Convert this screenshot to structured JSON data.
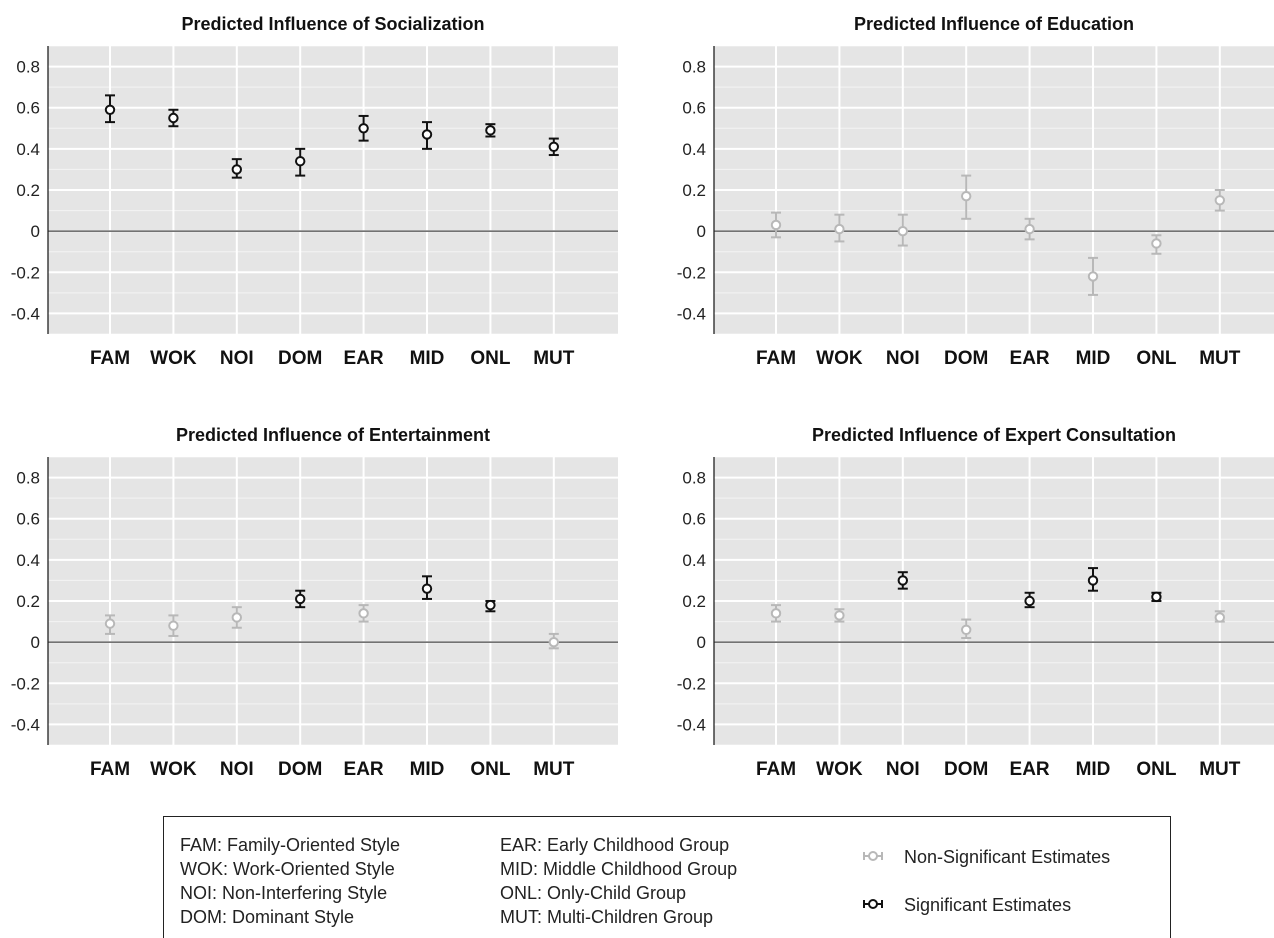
{
  "colors": {
    "panel_bg": "#e5e5e5",
    "grid": "#ffffff",
    "significant": "#111111",
    "non_significant": "#b8b8b8",
    "axis": "#222222"
  },
  "chart_data": [
    {
      "type": "scatter",
      "title": "Predicted Influence of Socialization",
      "categories": [
        "FAM",
        "WOK",
        "NOI",
        "DOM",
        "EAR",
        "MID",
        "ONL",
        "MUT"
      ],
      "yticks": [
        "0.8",
        "0.6",
        "0.4",
        "0.2",
        "0",
        "-0.2",
        "-0.4"
      ],
      "ylim": [
        -0.5,
        0.9
      ],
      "estimates": [
        0.59,
        0.55,
        0.3,
        0.34,
        0.5,
        0.47,
        0.49,
        0.41
      ],
      "lower": [
        0.53,
        0.51,
        0.26,
        0.27,
        0.44,
        0.4,
        0.46,
        0.37
      ],
      "upper": [
        0.66,
        0.59,
        0.35,
        0.4,
        0.56,
        0.53,
        0.52,
        0.45
      ],
      "significant": [
        true,
        true,
        true,
        true,
        true,
        true,
        true,
        true
      ]
    },
    {
      "type": "scatter",
      "title": "Predicted Influence of Education",
      "categories": [
        "FAM",
        "WOK",
        "NOI",
        "DOM",
        "EAR",
        "MID",
        "ONL",
        "MUT"
      ],
      "yticks": [
        "0.8",
        "0.6",
        "0.4",
        "0.2",
        "0",
        "-0.2",
        "-0.4"
      ],
      "ylim": [
        -0.5,
        0.9
      ],
      "estimates": [
        0.03,
        0.01,
        0.0,
        0.17,
        0.01,
        -0.22,
        -0.06,
        0.15
      ],
      "lower": [
        -0.03,
        -0.05,
        -0.07,
        0.06,
        -0.04,
        -0.31,
        -0.11,
        0.1
      ],
      "upper": [
        0.09,
        0.08,
        0.08,
        0.27,
        0.06,
        -0.13,
        -0.02,
        0.2
      ],
      "significant": [
        false,
        false,
        false,
        false,
        false,
        false,
        false,
        false
      ]
    },
    {
      "type": "scatter",
      "title": "Predicted Influence of Entertainment",
      "categories": [
        "FAM",
        "WOK",
        "NOI",
        "DOM",
        "EAR",
        "MID",
        "ONL",
        "MUT"
      ],
      "yticks": [
        "0.8",
        "0.6",
        "0.4",
        "0.2",
        "0",
        "-0.2",
        "-0.4"
      ],
      "ylim": [
        -0.5,
        0.9
      ],
      "estimates": [
        0.09,
        0.08,
        0.12,
        0.21,
        0.14,
        0.26,
        0.18,
        0.0
      ],
      "lower": [
        0.04,
        0.03,
        0.07,
        0.17,
        0.1,
        0.21,
        0.15,
        -0.03
      ],
      "upper": [
        0.13,
        0.13,
        0.17,
        0.25,
        0.18,
        0.32,
        0.2,
        0.04
      ],
      "significant": [
        false,
        false,
        false,
        true,
        false,
        true,
        true,
        false
      ]
    },
    {
      "type": "scatter",
      "title": "Predicted Influence of Expert Consultation",
      "categories": [
        "FAM",
        "WOK",
        "NOI",
        "DOM",
        "EAR",
        "MID",
        "ONL",
        "MUT"
      ],
      "yticks": [
        "0.8",
        "0.6",
        "0.4",
        "0.2",
        "0",
        "-0.2",
        "-0.4"
      ],
      "ylim": [
        -0.5,
        0.9
      ],
      "estimates": [
        0.14,
        0.13,
        0.3,
        0.06,
        0.2,
        0.3,
        0.22,
        0.12
      ],
      "lower": [
        0.1,
        0.1,
        0.26,
        0.02,
        0.17,
        0.25,
        0.2,
        0.1
      ],
      "upper": [
        0.18,
        0.16,
        0.34,
        0.11,
        0.24,
        0.36,
        0.24,
        0.15
      ],
      "significant": [
        false,
        false,
        true,
        false,
        true,
        true,
        true,
        false
      ]
    }
  ],
  "legend": {
    "abbreviations_col1": [
      "FAM: Family-Oriented Style",
      "WOK: Work-Oriented Style",
      "NOI: Non-Interfering Style",
      "DOM: Dominant Style"
    ],
    "abbreviations_col2": [
      "EAR: Early Childhood Group",
      "MID: Middle Childhood Group",
      "ONL: Only-Child Group",
      "MUT: Multi-Children Group"
    ],
    "non_significant_label": "Non-Significant Estimates",
    "significant_label": "Significant Estimates"
  }
}
